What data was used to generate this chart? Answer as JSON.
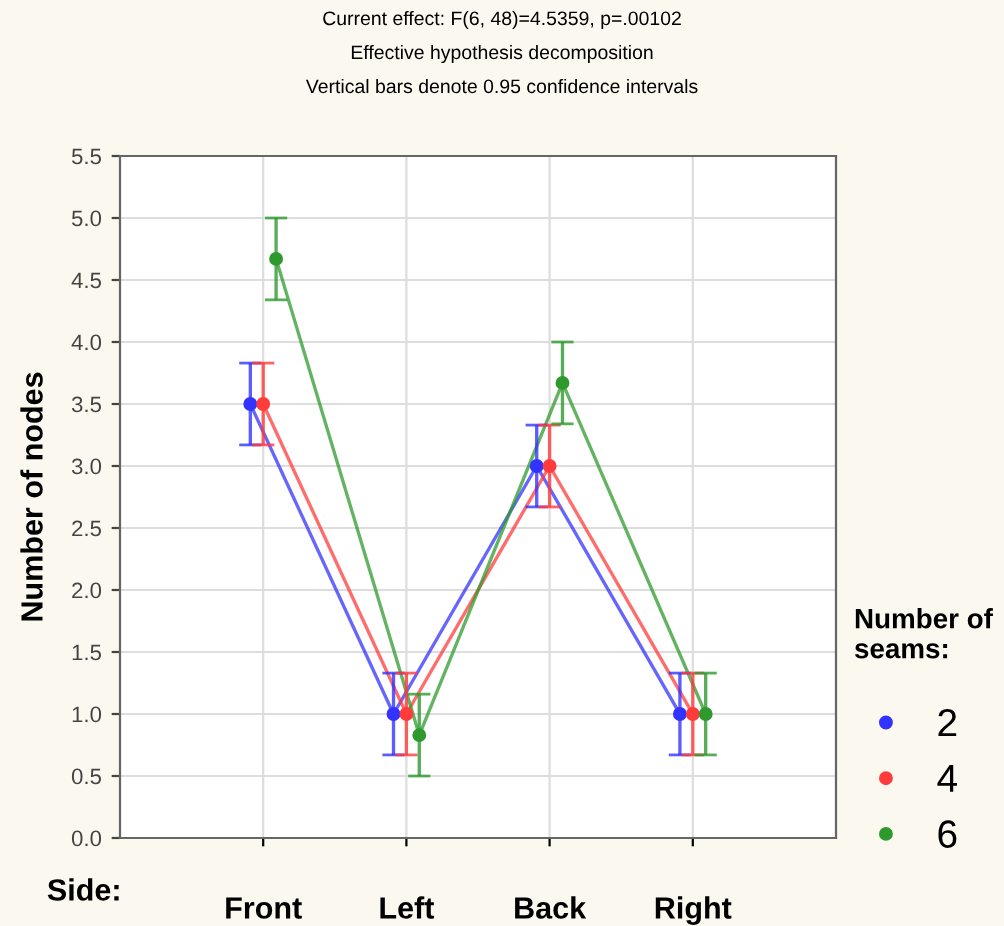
{
  "chart_data": {
    "type": "line",
    "title": "Current effect: F(6, 48)=4.5359, p=.00102",
    "subtitle": "Effective hypothesis decomposition",
    "annotations": [
      "Vertical bars denote 0.95 confidence intervals"
    ],
    "xlabel": "Side:",
    "ylabel": "Number of nodes",
    "legend_title": "Number of seams:",
    "categories": [
      "Front",
      "Left",
      "Back",
      "Right"
    ],
    "series": [
      {
        "name": "2",
        "color": "#3333ff",
        "values": [
          3.5,
          1.0,
          3.0,
          1.0
        ],
        "errors": [
          0.33,
          0.33,
          0.33,
          0.33
        ]
      },
      {
        "name": "4",
        "color": "#ff3b3b",
        "values": [
          3.5,
          1.0,
          3.0,
          1.0
        ],
        "errors": [
          0.33,
          0.33,
          0.33,
          0.33
        ]
      },
      {
        "name": "6",
        "color": "#2e9a2e",
        "values": [
          4.67,
          0.83,
          3.67,
          1.0
        ],
        "errors": [
          0.33,
          0.33,
          0.33,
          0.33
        ]
      }
    ],
    "ylim": [
      0,
      5.5
    ],
    "yticks": [
      {
        "value": 0,
        "label": "0.0"
      },
      {
        "value": 0.5,
        "label": "0.5"
      },
      {
        "value": 1,
        "label": "1.0"
      },
      {
        "value": 1.5,
        "label": "1.5"
      },
      {
        "value": 2,
        "label": "2.0"
      },
      {
        "value": 2.5,
        "label": "2.5"
      },
      {
        "value": 3,
        "label": "3.0"
      },
      {
        "value": 3.5,
        "label": "3.5"
      },
      {
        "value": 4,
        "label": "4.0"
      },
      {
        "value": 4.5,
        "label": "4.5"
      },
      {
        "value": 5,
        "label": "5.0"
      },
      {
        "value": 5.5,
        "label": "5.5"
      }
    ],
    "grid": true,
    "legend": "right",
    "marker": "circle",
    "line_style": "solid"
  }
}
